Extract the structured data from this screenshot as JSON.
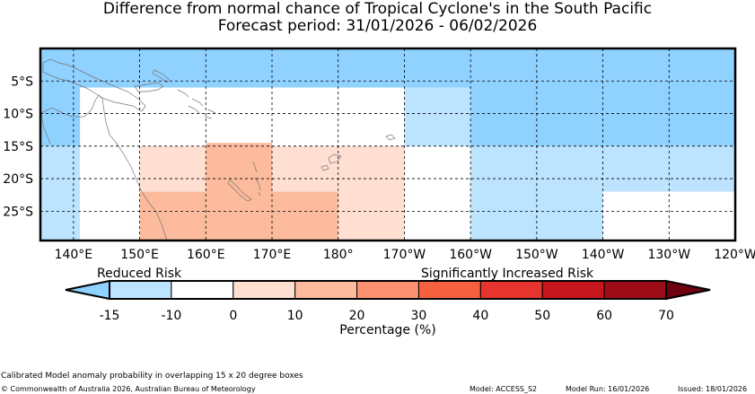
{
  "title": "Difference from normal chance of Tropical Cyclone's in the South Pacific",
  "subtitle": "Forecast period: 31/01/2026 - 06/02/2026",
  "map": {
    "lon_range": [
      135,
      240
    ],
    "lat_range": [
      -29.5,
      0
    ],
    "lon_ticks": [
      {
        "lon": 140,
        "label": "140°E"
      },
      {
        "lon": 150,
        "label": "150°E"
      },
      {
        "lon": 160,
        "label": "160°E"
      },
      {
        "lon": 170,
        "label": "170°E"
      },
      {
        "lon": 180,
        "label": "180°"
      },
      {
        "lon": 190,
        "label": "170°W"
      },
      {
        "lon": 200,
        "label": "160°W"
      },
      {
        "lon": 210,
        "label": "150°W"
      },
      {
        "lon": 220,
        "label": "140°W"
      },
      {
        "lon": 230,
        "label": "130°W"
      },
      {
        "lon": 240,
        "label": "120°W"
      }
    ],
    "lat_ticks": [
      {
        "lat": -5,
        "label": "5°S"
      },
      {
        "lat": -10,
        "label": "10°S"
      },
      {
        "lat": -15,
        "label": "15°S"
      },
      {
        "lat": -20,
        "label": "20°S"
      },
      {
        "lat": -25,
        "label": "25°S"
      }
    ],
    "grid": true,
    "cells": [
      {
        "lon0": 135,
        "lon1": 240,
        "lat0": -6,
        "lat1": 0,
        "color": "#8fd1ff"
      },
      {
        "lon0": 135,
        "lon1": 141,
        "lat0": -15,
        "lat1": -6,
        "color": "#8fd1ff"
      },
      {
        "lon0": 135,
        "lon1": 141,
        "lat0": -29.5,
        "lat1": -15,
        "color": "#bde4ff"
      },
      {
        "lon0": 141,
        "lon1": 150,
        "lat0": -29.5,
        "lat1": -6,
        "color": "#ffffff"
      },
      {
        "lon0": 150,
        "lon1": 190,
        "lat0": -15,
        "lat1": -6,
        "color": "#ffffff"
      },
      {
        "lon0": 190,
        "lon1": 200,
        "lat0": -15,
        "lat1": -6,
        "color": "#bde4ff"
      },
      {
        "lon0": 200,
        "lon1": 240,
        "lat0": -15,
        "lat1": -6,
        "color": "#8fd1ff"
      },
      {
        "lon0": 150,
        "lon1": 160,
        "lat0": -22,
        "lat1": -15,
        "color": "#ffdfd2"
      },
      {
        "lon0": 150,
        "lon1": 160,
        "lat0": -29.5,
        "lat1": -22,
        "color": "#fbbb9c"
      },
      {
        "lon0": 160,
        "lon1": 170,
        "lat0": -29.5,
        "lat1": -14.5,
        "color": "#fbbb9c"
      },
      {
        "lon0": 170,
        "lon1": 180,
        "lat0": -22,
        "lat1": -15,
        "color": "#ffdfd2"
      },
      {
        "lon0": 170,
        "lon1": 180,
        "lat0": -29.5,
        "lat1": -22,
        "color": "#fbbb9c"
      },
      {
        "lon0": 180,
        "lon1": 190,
        "lat0": -29.5,
        "lat1": -15,
        "color": "#ffdfd2"
      },
      {
        "lon0": 190,
        "lon1": 200,
        "lat0": -29.5,
        "lat1": -15,
        "color": "#ffffff"
      },
      {
        "lon0": 200,
        "lon1": 220,
        "lat0": -29.5,
        "lat1": -15,
        "color": "#bde4ff"
      },
      {
        "lon0": 220,
        "lon1": 240,
        "lat0": -22,
        "lat1": -15,
        "color": "#bde4ff"
      },
      {
        "lon0": 220,
        "lon1": 240,
        "lat0": -29.5,
        "lat1": -22,
        "color": "#ffffff"
      }
    ]
  },
  "colorbar": {
    "reduced_label": "Reduced Risk",
    "increased_label": "Significantly Increased Risk",
    "axis_label": "Percentage (%)",
    "ticks": [
      "-15",
      "-10",
      "0",
      "10",
      "20",
      "30",
      "40",
      "50",
      "60",
      "70"
    ],
    "low_extend_color": "#8fd1ff",
    "high_extend_color": "#6e0010",
    "segments": [
      "#bde4ff",
      "#ffffff",
      "#ffdfd2",
      "#fbbb9c",
      "#fb9170",
      "#f6603f",
      "#e6352e",
      "#c5161d",
      "#9e0d17"
    ]
  },
  "footer": {
    "note": "Calibrated Model anomaly probability in overlapping 15 x 20 degree boxes",
    "copyright": "© Commonwealth of Australia 2026, Australian Bureau of Meteorology",
    "model": "Model: ACCESS_S2",
    "model_run": "Model Run: 16/01/2026",
    "issued": "Issued: 18/01/2026"
  }
}
